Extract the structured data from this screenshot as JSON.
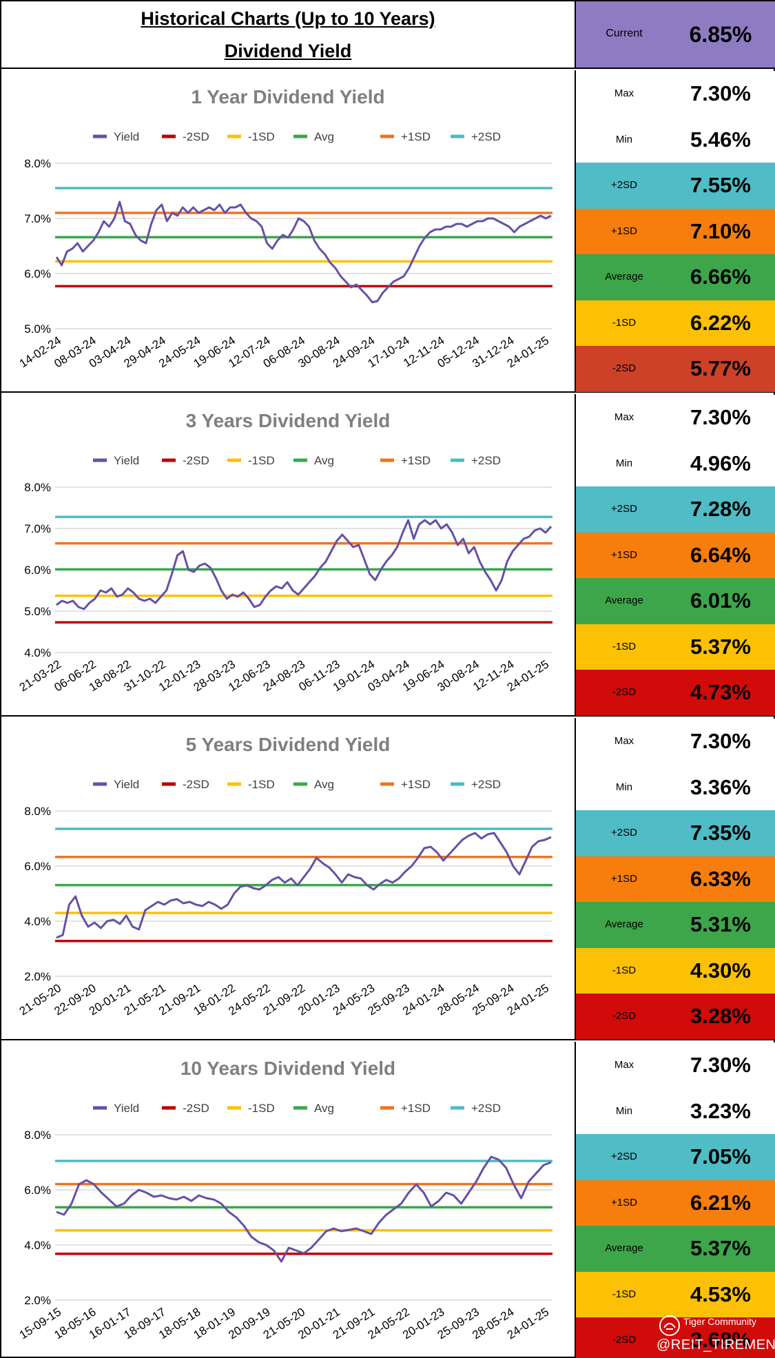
{
  "header": {
    "title_line1": "Historical Charts (Up to 10 Years)",
    "title_line2": "Dividend Yield",
    "current_label": "Current",
    "current_value": "6.85%"
  },
  "legend_labels": [
    "Yield",
    "-2SD",
    "-1SD",
    "Avg",
    "+1SD",
    "+2SD"
  ],
  "colors": {
    "yield": "#6650a4",
    "minus2sd": "#c00000",
    "minus1sd": "#ffc000",
    "avg": "#38a84a",
    "plus1sd": "#f07321",
    "plus2sd": "#48bcc8",
    "current_bg": "#8e7cc3",
    "row_plus2sd": "#4fbcc6",
    "row_plus1sd": "#f77d0c",
    "row_avg": "#3da64a",
    "row_minus1sd": "#fcc004",
    "row_minus2sd_1y": "#cc4128",
    "row_minus2sd": "#d10a0a",
    "grid": "#d9d9d9"
  },
  "sections": [
    {
      "stats": [
        {
          "label": "Max",
          "value": "7.30%"
        },
        {
          "label": "Min",
          "value": "5.46%"
        },
        {
          "label": "+2SD",
          "value": "7.55%"
        },
        {
          "label": "+1SD",
          "value": "7.10%"
        },
        {
          "label": "Average",
          "value": "6.66%"
        },
        {
          "label": "-1SD",
          "value": "6.22%"
        },
        {
          "label": "-2SD",
          "value": "5.77%"
        }
      ]
    },
    {
      "stats": [
        {
          "label": "Max",
          "value": "7.30%"
        },
        {
          "label": "Min",
          "value": "4.96%"
        },
        {
          "label": "+2SD",
          "value": "7.28%"
        },
        {
          "label": "+1SD",
          "value": "6.64%"
        },
        {
          "label": "Average",
          "value": "6.01%"
        },
        {
          "label": "-1SD",
          "value": "5.37%"
        },
        {
          "label": "-2SD",
          "value": "4.73%"
        }
      ]
    },
    {
      "stats": [
        {
          "label": "Max",
          "value": "7.30%"
        },
        {
          "label": "Min",
          "value": "3.36%"
        },
        {
          "label": "+2SD",
          "value": "7.35%"
        },
        {
          "label": "+1SD",
          "value": "6.33%"
        },
        {
          "label": "Average",
          "value": "5.31%"
        },
        {
          "label": "-1SD",
          "value": "4.30%"
        },
        {
          "label": "-2SD",
          "value": "3.28%"
        }
      ]
    },
    {
      "stats": [
        {
          "label": "Max",
          "value": "7.30%"
        },
        {
          "label": "Min",
          "value": "3.23%"
        },
        {
          "label": "+2SD",
          "value": "7.05%"
        },
        {
          "label": "+1SD",
          "value": "6.21%"
        },
        {
          "label": "Average",
          "value": "5.37%"
        },
        {
          "label": "-1SD",
          "value": "4.53%"
        },
        {
          "label": "-2SD",
          "value": "3.68%"
        }
      ]
    }
  ],
  "watermark": {
    "brand": "Tiger Community",
    "handle": "@REIT_TIREMENT"
  },
  "chart_data": [
    {
      "type": "line",
      "title": "1 Year Dividend Yield",
      "ylim": [
        5.0,
        8.0
      ],
      "yticks": [
        "5.0%",
        "6.0%",
        "7.0%",
        "8.0%"
      ],
      "xticks": [
        "14-02-24",
        "08-03-24",
        "03-04-24",
        "29-04-24",
        "24-05-24",
        "19-06-24",
        "12-07-24",
        "06-08-24",
        "30-08-24",
        "24-09-24",
        "17-10-24",
        "12-11-24",
        "05-12-24",
        "31-12-24",
        "24-01-25"
      ],
      "series": [
        {
          "name": "Yield",
          "values": [
            6.3,
            6.15,
            6.4,
            6.45,
            6.55,
            6.4,
            6.5,
            6.6,
            6.75,
            6.95,
            6.85,
            7.0,
            7.3,
            6.95,
            6.9,
            6.7,
            6.6,
            6.55,
            6.9,
            7.15,
            7.25,
            6.95,
            7.1,
            7.05,
            7.2,
            7.1,
            7.2,
            7.1,
            7.15,
            7.2,
            7.15,
            7.25,
            7.1,
            7.2,
            7.2,
            7.25,
            7.1,
            7.0,
            6.95,
            6.85,
            6.55,
            6.45,
            6.6,
            6.7,
            6.65,
            6.8,
            7.0,
            6.95,
            6.85,
            6.6,
            6.45,
            6.35,
            6.2,
            6.1,
            5.95,
            5.85,
            5.75,
            5.8,
            5.7,
            5.6,
            5.48,
            5.5,
            5.65,
            5.75,
            5.85,
            5.9,
            5.95,
            6.1,
            6.3,
            6.5,
            6.65,
            6.75,
            6.8,
            6.8,
            6.85,
            6.85,
            6.9,
            6.9,
            6.85,
            6.9,
            6.95,
            6.95,
            7.0,
            7.0,
            6.95,
            6.9,
            6.85,
            6.75,
            6.85,
            6.9,
            6.95,
            7.0,
            7.05,
            7.0,
            7.05
          ]
        }
      ],
      "bands": {
        "-2SD": 5.77,
        "-1SD": 6.22,
        "Avg": 6.66,
        "+1SD": 7.1,
        "+2SD": 7.55
      }
    },
    {
      "type": "line",
      "title": "3 Years Dividend Yield",
      "ylim": [
        4.0,
        8.0
      ],
      "yticks": [
        "4.0%",
        "5.0%",
        "6.0%",
        "7.0%",
        "8.0%"
      ],
      "xticks": [
        "21-03-22",
        "06-06-22",
        "18-08-22",
        "31-10-22",
        "12-01-23",
        "28-03-23",
        "12-06-23",
        "24-08-23",
        "06-11-23",
        "19-01-24",
        "03-04-24",
        "19-06-24",
        "30-08-24",
        "12-11-24",
        "24-01-25"
      ],
      "series": [
        {
          "name": "Yield",
          "values": [
            5.15,
            5.25,
            5.2,
            5.25,
            5.1,
            5.05,
            5.2,
            5.3,
            5.5,
            5.45,
            5.55,
            5.35,
            5.4,
            5.55,
            5.45,
            5.3,
            5.25,
            5.3,
            5.2,
            5.35,
            5.5,
            5.9,
            6.35,
            6.45,
            6.0,
            5.95,
            6.1,
            6.15,
            6.05,
            5.8,
            5.5,
            5.3,
            5.4,
            5.35,
            5.45,
            5.3,
            5.1,
            5.15,
            5.35,
            5.5,
            5.6,
            5.55,
            5.7,
            5.5,
            5.4,
            5.55,
            5.7,
            5.85,
            6.05,
            6.2,
            6.45,
            6.7,
            6.85,
            6.7,
            6.55,
            6.6,
            6.25,
            5.9,
            5.75,
            6.0,
            6.2,
            6.35,
            6.55,
            6.9,
            7.2,
            6.75,
            7.1,
            7.2,
            7.1,
            7.2,
            7.0,
            7.1,
            6.9,
            6.6,
            6.75,
            6.4,
            6.55,
            6.2,
            5.95,
            5.75,
            5.5,
            5.75,
            6.2,
            6.45,
            6.6,
            6.75,
            6.8,
            6.95,
            7.0,
            6.9,
            7.05
          ]
        }
      ],
      "bands": {
        "-2SD": 4.73,
        "-1SD": 5.37,
        "Avg": 6.01,
        "+1SD": 6.64,
        "+2SD": 7.28
      }
    },
    {
      "type": "line",
      "title": "5 Years Dividend Yield",
      "ylim": [
        2.0,
        8.0
      ],
      "yticks": [
        "2.0%",
        "4.0%",
        "6.0%",
        "8.0%"
      ],
      "xticks": [
        "21-05-20",
        "22-09-20",
        "20-01-21",
        "21-05-21",
        "21-09-21",
        "18-01-22",
        "24-05-22",
        "21-09-22",
        "20-01-23",
        "24-05-23",
        "25-09-23",
        "24-01-24",
        "28-05-24",
        "25-09-24",
        "24-01-25"
      ],
      "series": [
        {
          "name": "Yield",
          "values": [
            3.4,
            3.5,
            4.6,
            4.9,
            4.2,
            3.8,
            3.95,
            3.75,
            4.0,
            4.05,
            3.9,
            4.2,
            3.8,
            3.7,
            4.4,
            4.55,
            4.7,
            4.6,
            4.75,
            4.8,
            4.65,
            4.7,
            4.6,
            4.55,
            4.7,
            4.6,
            4.45,
            4.6,
            5.0,
            5.25,
            5.3,
            5.2,
            5.15,
            5.3,
            5.5,
            5.6,
            5.4,
            5.55,
            5.3,
            5.6,
            5.9,
            6.3,
            6.1,
            5.95,
            5.7,
            5.4,
            5.7,
            5.6,
            5.55,
            5.3,
            5.15,
            5.35,
            5.5,
            5.4,
            5.55,
            5.8,
            6.0,
            6.3,
            6.65,
            6.7,
            6.5,
            6.2,
            6.45,
            6.7,
            6.95,
            7.1,
            7.2,
            7.0,
            7.15,
            7.2,
            6.85,
            6.5,
            6.0,
            5.7,
            6.2,
            6.7,
            6.9,
            6.95,
            7.05
          ]
        }
      ],
      "bands": {
        "-2SD": 3.28,
        "-1SD": 4.3,
        "Avg": 5.31,
        "+1SD": 6.33,
        "+2SD": 7.35
      }
    },
    {
      "type": "line",
      "title": "10 Years Dividend Yield",
      "ylim": [
        2.0,
        8.0
      ],
      "yticks": [
        "2.0%",
        "4.0%",
        "6.0%",
        "8.0%"
      ],
      "xticks": [
        "15-09-15",
        "18-05-16",
        "16-01-17",
        "18-09-17",
        "18-05-18",
        "18-01-19",
        "20-09-19",
        "21-05-20",
        "20-01-21",
        "21-09-21",
        "24-05-22",
        "20-01-23",
        "25-09-23",
        "28-05-24",
        "24-01-25"
      ],
      "series": [
        {
          "name": "Yield",
          "values": [
            5.2,
            5.1,
            5.5,
            6.2,
            6.35,
            6.2,
            5.9,
            5.65,
            5.4,
            5.5,
            5.8,
            6.0,
            5.9,
            5.75,
            5.8,
            5.7,
            5.65,
            5.75,
            5.6,
            5.8,
            5.7,
            5.65,
            5.5,
            5.2,
            5.0,
            4.7,
            4.3,
            4.1,
            4.0,
            3.8,
            3.4,
            3.9,
            3.8,
            3.7,
            3.9,
            4.2,
            4.5,
            4.6,
            4.5,
            4.55,
            4.6,
            4.5,
            4.4,
            4.8,
            5.1,
            5.3,
            5.5,
            5.9,
            6.2,
            5.9,
            5.4,
            5.6,
            5.9,
            5.8,
            5.5,
            5.9,
            6.3,
            6.8,
            7.2,
            7.1,
            6.8,
            6.2,
            5.7,
            6.3,
            6.6,
            6.9,
            7.0
          ]
        }
      ],
      "bands": {
        "-2SD": 3.68,
        "-1SD": 4.53,
        "Avg": 5.37,
        "+1SD": 6.21,
        "+2SD": 7.05
      }
    }
  ]
}
